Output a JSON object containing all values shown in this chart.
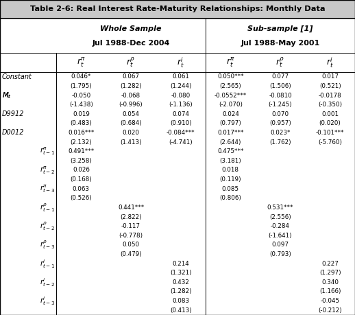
{
  "title": "Table 2-6: Real Interest Rate-Maturity Relationships: Monthly Data",
  "whole_sample_label": "Whole Sample",
  "whole_sample_dates": "Jul 1988-Dec 2004",
  "subsample_label": "Sub-sample [1]",
  "subsample_dates": "Jul 1988-May 2001",
  "col_header_labels": [
    "$r_t^{\\pi}$",
    "$r_t^{\\rho}$",
    "$r_t^{i}$",
    "$r_t^{\\pi}$",
    "$r_t^{\\rho}$",
    "$r_t^{i}$"
  ],
  "data": [
    [
      "0.046*",
      "0.067",
      "0.061",
      "0.050***",
      "0.077",
      "0.017"
    ],
    [
      "(1.795)",
      "(1.282)",
      "(1.244)",
      "(2.565)",
      "(1.506)",
      "(0.521)"
    ],
    [
      "-0.050",
      "-0.068",
      "-0.080",
      "-0.0552***",
      "-0.0810",
      "-0.0178"
    ],
    [
      "(-1.438)",
      "(-0.996)",
      "(-1.136)",
      "(-2.070)",
      "(-1.245)",
      "(-0.350)"
    ],
    [
      "0.019",
      "0.054",
      "0.074",
      "0.024",
      "0.070",
      "0.001"
    ],
    [
      "(0.483)",
      "(0.684)",
      "(0.910)",
      "(0.797)",
      "(0.957)",
      "(0.020)"
    ],
    [
      "0.016***",
      "0.020",
      "-0.084***",
      "0.017***",
      "0.023*",
      "-0.101***"
    ],
    [
      "(2.132)",
      "(1.413)",
      "(-4.741)",
      "(2.644)",
      "(1.762)",
      "(-5.760)"
    ],
    [
      "0.491***",
      "",
      "",
      "0.475***",
      "",
      ""
    ],
    [
      "(3.258)",
      "",
      "",
      "(3.181)",
      "",
      ""
    ],
    [
      "0.026",
      "",
      "",
      "0.018",
      "",
      ""
    ],
    [
      "(0.168)",
      "",
      "",
      "(0.119)",
      "",
      ""
    ],
    [
      "0.063",
      "",
      "",
      "0.085",
      "",
      ""
    ],
    [
      "(0.526)",
      "",
      "",
      "(0.806)",
      "",
      ""
    ],
    [
      "",
      "0.441***",
      "",
      "",
      "0.531***",
      ""
    ],
    [
      "",
      "(2.822)",
      "",
      "",
      "(2.556)",
      ""
    ],
    [
      "",
      "-0.117",
      "",
      "",
      "-0.284",
      ""
    ],
    [
      "",
      "(-0.778)",
      "",
      "",
      "(-1.641)",
      ""
    ],
    [
      "",
      "0.050",
      "",
      "",
      "0.097",
      ""
    ],
    [
      "",
      "(0.479)",
      "",
      "",
      "(0.793)",
      ""
    ],
    [
      "",
      "",
      "0.214",
      "",
      "",
      "0.227"
    ],
    [
      "",
      "",
      "(1.321)",
      "",
      "",
      "(1.297)"
    ],
    [
      "",
      "",
      "0.432",
      "",
      "",
      "0.340"
    ],
    [
      "",
      "",
      "(1.282)",
      "",
      "",
      "(1.166)"
    ],
    [
      "",
      "",
      "0.083",
      "",
      "",
      "-0.045"
    ],
    [
      "",
      "",
      "(0.413)",
      "",
      "",
      "(-0.212)"
    ]
  ],
  "row_labels_odd": [
    "Constant",
    "M_t",
    "D9912",
    "D0012",
    "rpi_t-1",
    "rpi_t-2",
    "rpi_t-3",
    "rrho_t-1",
    "rrho_t-2",
    "rrho_t-3",
    "ri_t-1",
    "ri_t-2",
    "ri_t-3"
  ],
  "background_color": "#ffffff"
}
